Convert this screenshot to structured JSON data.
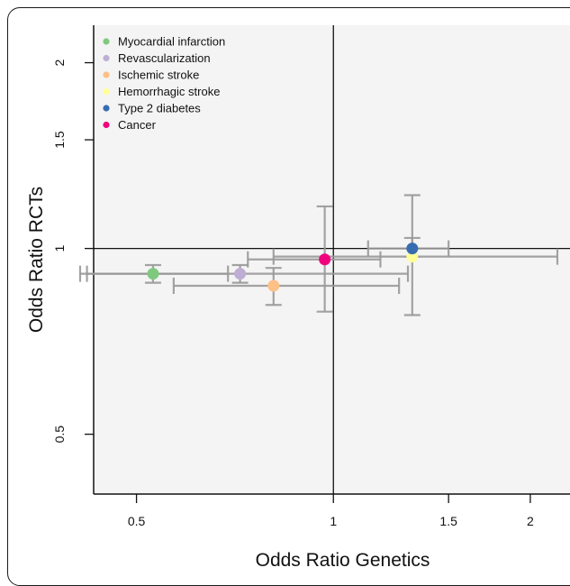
{
  "chart_data": {
    "type": "scatter",
    "xlabel": "Odds Ratio Genetics",
    "ylabel": "Odds Ratio RCTs",
    "x_scale": "log",
    "y_scale": "log",
    "xlim": [
      0.43,
      2.3
    ],
    "ylim": [
      0.4,
      2.3
    ],
    "x_ticks": [
      {
        "value": 0.5,
        "label": "0.5"
      },
      {
        "value": 1,
        "label": "1"
      },
      {
        "value": 1.5,
        "label": "1.5"
      },
      {
        "value": 2,
        "label": "2"
      }
    ],
    "y_ticks": [
      {
        "value": 0.5,
        "label": "0.5"
      },
      {
        "value": 1,
        "label": "1"
      },
      {
        "value": 1.5,
        "label": "1.5"
      },
      {
        "value": 2,
        "label": "2"
      }
    ],
    "reference_lines": {
      "x": 1,
      "y": 1
    },
    "legend_position": "top-left",
    "background": "#f4f4f4",
    "errorbar_color": "#999999",
    "series": [
      {
        "name": "Myocardial infarction",
        "color": "#7fc97f",
        "x": 0.53,
        "y": 0.91,
        "x_ci": [
          0.41,
          0.69
        ],
        "y_ci": [
          0.88,
          0.94
        ]
      },
      {
        "name": "Revascularization",
        "color": "#beaed4",
        "x": 0.72,
        "y": 0.91,
        "x_ci": [
          0.42,
          1.3
        ],
        "y_ci": [
          0.88,
          0.94
        ]
      },
      {
        "name": "Ischemic stroke",
        "color": "#fdc086",
        "x": 0.81,
        "y": 0.87,
        "x_ci": [
          0.57,
          1.26
        ],
        "y_ci": [
          0.81,
          0.93
        ]
      },
      {
        "name": "Hemorrhagic stroke",
        "color": "#ffff99",
        "x": 1.32,
        "y": 0.97,
        "x_ci": [
          0.81,
          2.2
        ],
        "y_ci": [
          0.78,
          1.22
        ]
      },
      {
        "name": "Type 2 diabetes",
        "color": "#386cb0",
        "x": 1.32,
        "y": 1.0,
        "x_ci": [
          1.13,
          1.5
        ],
        "y_ci": [
          0.97,
          1.04
        ]
      },
      {
        "name": "Cancer",
        "color": "#f0027f",
        "x": 0.97,
        "y": 0.96,
        "x_ci": [
          0.74,
          1.18
        ],
        "y_ci": [
          0.79,
          1.17
        ]
      }
    ]
  }
}
